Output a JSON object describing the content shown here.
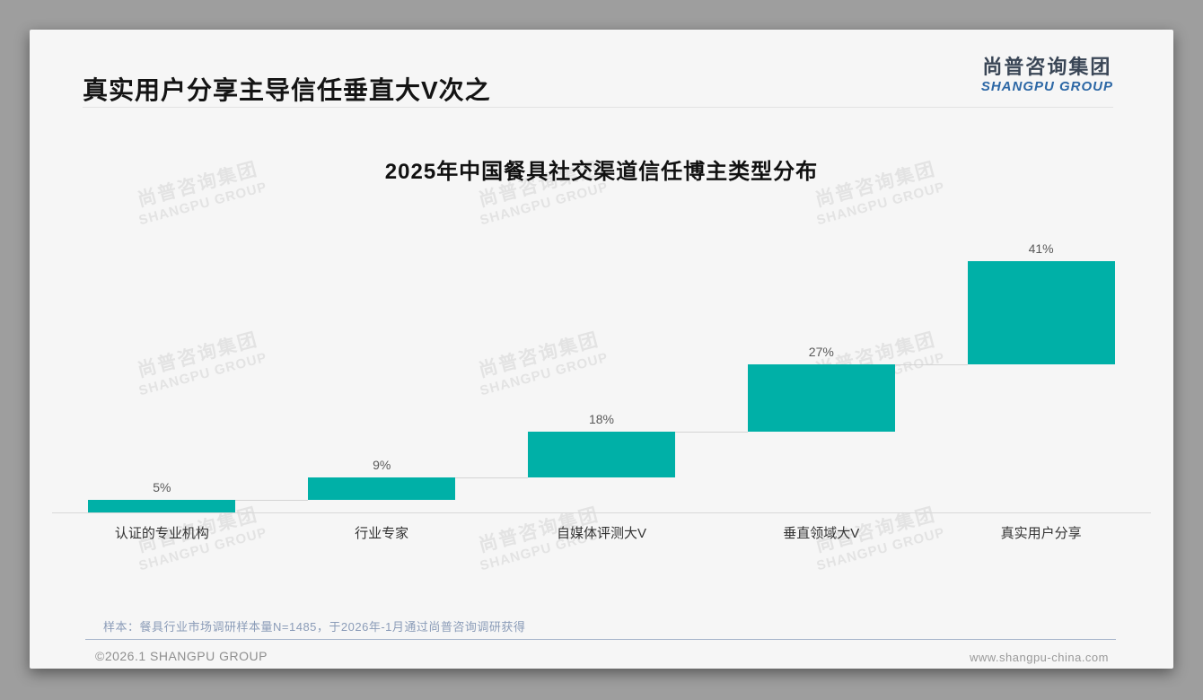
{
  "page": {
    "title": "真实用户分享主导信任垂直大V次之",
    "logo": {
      "zh": "尚普咨询集团",
      "en": "SHANGPU GROUP"
    },
    "watermark": {
      "zh": "尚普咨询集团",
      "en": "SHANGPU GROUP"
    },
    "footer": {
      "note": "样本：餐具行业市场调研样本量N=1485，于2026年-1月通过尚普咨询调研获得",
      "copyright": "©2026.1 SHANGPU GROUP",
      "website": "www.shangpu-china.com"
    }
  },
  "colors": {
    "bar_teal": "#00B0A7",
    "logo_blue": "#2c67a5",
    "logo_dark": "#3a4656",
    "note_bluegray": "#8b9cb8"
  },
  "chart_data": {
    "type": "bar",
    "subtype": "waterfall-steps",
    "title": "2025年中国餐具社交渠道信任博主类型分布",
    "categories": [
      "认证的专业机构",
      "行业专家",
      "自媒体评测大V",
      "垂直领域大V",
      "真实用户分享"
    ],
    "values": [
      5,
      9,
      18,
      27,
      41
    ],
    "labels": [
      "5%",
      "9%",
      "18%",
      "27%",
      "41%"
    ],
    "cumulative": [
      5,
      14,
      32,
      59,
      100
    ],
    "unit": "%",
    "ylim": [
      0,
      100
    ],
    "xlabel": "",
    "ylabel": "",
    "grid": false,
    "legend": false,
    "bar_color": "#00B0A7",
    "layout_note": "stepped waterfall: each bar rises from previous cumulative total; thin gray connector lines link step tops; only baseline axis shown"
  }
}
